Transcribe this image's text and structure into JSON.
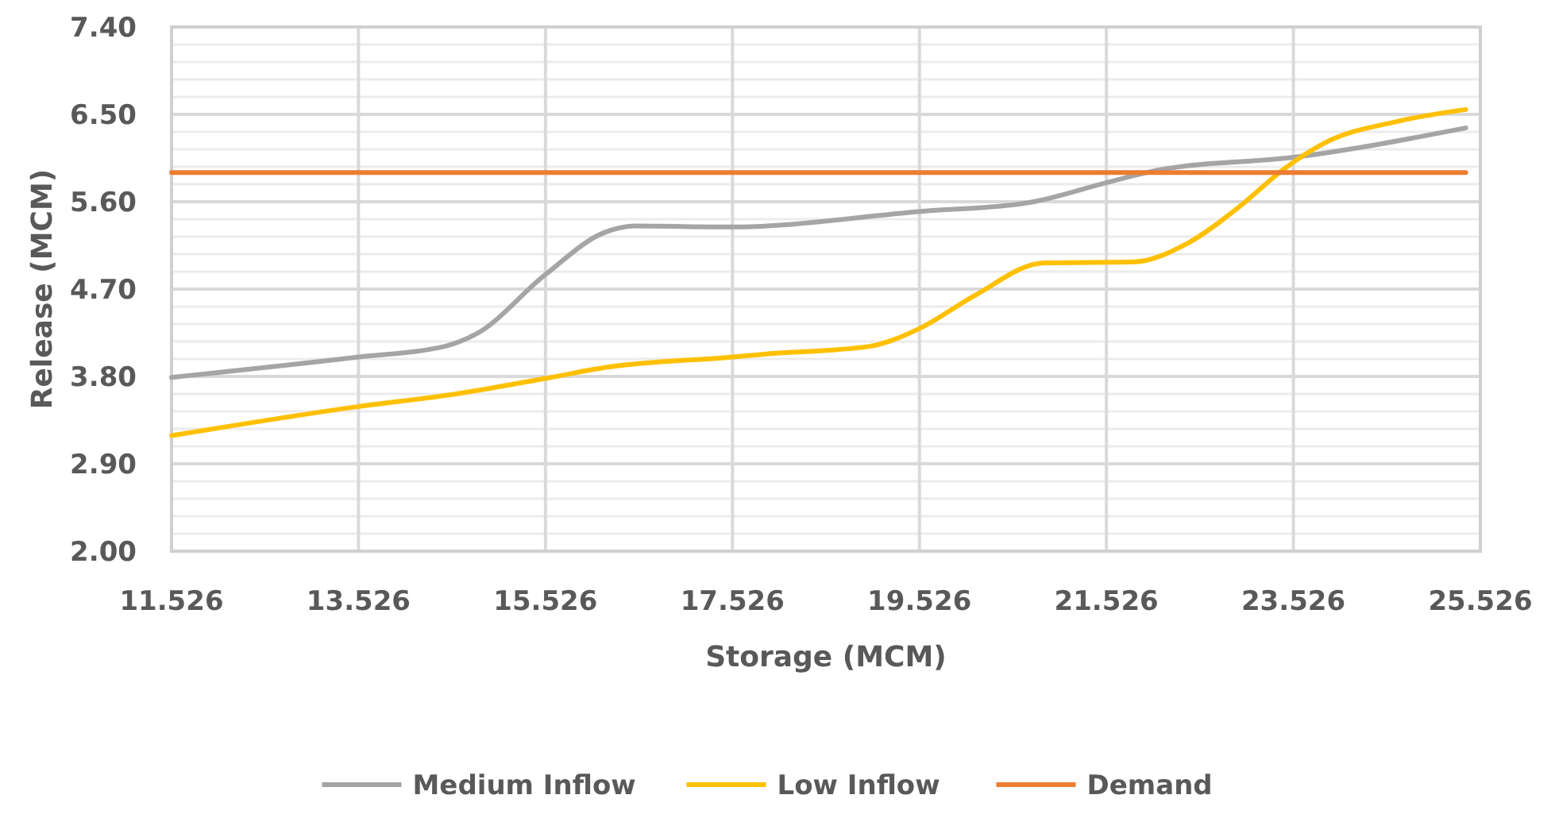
{
  "chart_data": {
    "type": "line",
    "xlabel": "Storage (MCM)",
    "ylabel": "Release (MCM)",
    "xlim": [
      11.526,
      25.526
    ],
    "xticks": [
      11.526,
      13.526,
      15.526,
      17.526,
      19.526,
      21.526,
      23.526,
      25.526
    ],
    "ylim": [
      2,
      7.4
    ],
    "yticks": [
      {
        "value": 2,
        "label": "2.00"
      },
      {
        "value": 2.18,
        "label": null
      },
      {
        "value": 2.36,
        "label": null
      },
      {
        "value": 2.54,
        "label": null
      },
      {
        "value": 2.72,
        "label": null
      },
      {
        "value": 2.9,
        "label": "2.90"
      },
      {
        "value": 3.08,
        "label": null
      },
      {
        "value": 3.26,
        "label": null
      },
      {
        "value": 3.44,
        "label": null
      },
      {
        "value": 3.62,
        "label": null
      },
      {
        "value": 3.8,
        "label": "3.80"
      },
      {
        "value": 3.98,
        "label": null
      },
      {
        "value": 4.16,
        "label": null
      },
      {
        "value": 4.34,
        "label": null
      },
      {
        "value": 4.52,
        "label": null
      },
      {
        "value": 4.7,
        "label": "4.70"
      },
      {
        "value": 4.88,
        "label": null
      },
      {
        "value": 5.06,
        "label": null
      },
      {
        "value": 5.24,
        "label": null
      },
      {
        "value": 5.42,
        "label": null
      },
      {
        "value": 5.6,
        "label": "5.60"
      },
      {
        "value": 5.78,
        "label": null
      },
      {
        "value": 5.96,
        "label": null
      },
      {
        "value": 6.14,
        "label": null
      },
      {
        "value": 6.32,
        "label": null
      },
      {
        "value": 6.5,
        "label": "6.50"
      },
      {
        "value": 6.68,
        "label": null
      },
      {
        "value": 6.86,
        "label": null
      },
      {
        "value": 7.04,
        "label": null
      },
      {
        "value": 7.22,
        "label": null
      },
      {
        "value": 7.4,
        "label": "7.40"
      }
    ],
    "grid": true,
    "legend": "bottom",
    "marker": "none",
    "line_style": "solid",
    "series": [
      {
        "name": "Medium Inflow",
        "color": "#a5a5a5",
        "x": [
          11.526,
          13.526,
          14.45,
          14.79,
          15.526,
          16.15,
          16.49,
          17.51,
          19.54,
          20.69,
          21.54,
          22.1,
          23.55,
          25.37
        ],
        "values": [
          3.79,
          4.0,
          4.11,
          4.24,
          4.85,
          5.28,
          5.35,
          5.34,
          5.5,
          5.59,
          5.8,
          5.93,
          6.06,
          6.36
        ]
      },
      {
        "name": "Low Inflow",
        "color": "#ffc000",
        "x": [
          11.526,
          13.526,
          14.57,
          15.526,
          16.15,
          17.526,
          17.87,
          18.99,
          19.54,
          20.11,
          20.86,
          21.82,
          22.39,
          22.95,
          23.43,
          23.85,
          24.65,
          25.37
        ],
        "values": [
          3.19,
          3.49,
          3.62,
          3.78,
          3.89,
          4.0,
          4.03,
          4.11,
          4.3,
          4.63,
          4.97,
          4.98,
          5.17,
          5.55,
          5.94,
          6.2,
          6.43,
          6.55
        ]
      },
      {
        "name": "Demand",
        "color": "#ed7d31",
        "x": [
          11.526,
          25.37
        ],
        "values": [
          5.9,
          5.9
        ]
      }
    ]
  }
}
